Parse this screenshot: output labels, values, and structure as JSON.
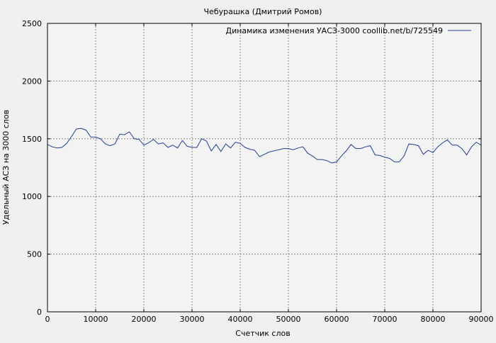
{
  "chart_data": {
    "type": "line",
    "title": "Чебурашка (Дмитрий Ромов)",
    "xlabel": "Счетчик слов",
    "ylabel": "Удельный АСЗ на 3000 слов",
    "xlim": [
      0,
      90000
    ],
    "ylim": [
      0,
      2500
    ],
    "x_ticks": [
      "0",
      "10000",
      "20000",
      "30000",
      "40000",
      "50000",
      "60000",
      "70000",
      "80000",
      "90000"
    ],
    "y_ticks": [
      "0",
      "500",
      "1000",
      "1500",
      "2000",
      "2500"
    ],
    "grid": true,
    "legend_position": "top-right",
    "series": [
      {
        "name": "Динамика изменения УАСЗ-3000 coollib.net/b/725549",
        "color": "#1f3f8f",
        "x": [
          0,
          1000,
          2000,
          3000,
          4000,
          5000,
          6000,
          7000,
          8000,
          9000,
          10000,
          11000,
          12000,
          13000,
          14000,
          15000,
          16000,
          17000,
          18000,
          19000,
          20000,
          21000,
          22000,
          23000,
          24000,
          25000,
          26000,
          27000,
          28000,
          29000,
          30000,
          31000,
          32000,
          33000,
          34000,
          35000,
          36000,
          37000,
          38000,
          39000,
          40000,
          41000,
          42000,
          43000,
          44000,
          45000,
          46000,
          47000,
          48000,
          49000,
          50000,
          51000,
          52000,
          53000,
          54000,
          55000,
          56000,
          57000,
          58000,
          59000,
          60000,
          61000,
          62000,
          63000,
          64000,
          65000,
          66000,
          67000,
          68000,
          69000,
          70000,
          71000,
          72000,
          73000,
          74000,
          75000,
          76000,
          77000,
          78000,
          79000,
          80000,
          81000,
          82000,
          83000,
          84000,
          85000,
          86000,
          87000,
          88000,
          89000,
          90000
        ],
        "y": [
          1450,
          1430,
          1420,
          1425,
          1460,
          1520,
          1585,
          1590,
          1575,
          1515,
          1515,
          1500,
          1455,
          1440,
          1455,
          1540,
          1535,
          1560,
          1500,
          1495,
          1445,
          1465,
          1495,
          1455,
          1465,
          1425,
          1445,
          1420,
          1485,
          1435,
          1425,
          1425,
          1500,
          1480,
          1395,
          1450,
          1390,
          1455,
          1420,
          1470,
          1460,
          1425,
          1410,
          1400,
          1345,
          1365,
          1385,
          1395,
          1405,
          1415,
          1415,
          1405,
          1420,
          1430,
          1375,
          1350,
          1320,
          1320,
          1310,
          1290,
          1300,
          1350,
          1395,
          1450,
          1415,
          1415,
          1430,
          1440,
          1360,
          1355,
          1340,
          1330,
          1300,
          1300,
          1350,
          1455,
          1450,
          1440,
          1365,
          1400,
          1380,
          1430,
          1465,
          1490,
          1445,
          1445,
          1415,
          1360,
          1430,
          1470,
          1445
        ]
      }
    ]
  }
}
